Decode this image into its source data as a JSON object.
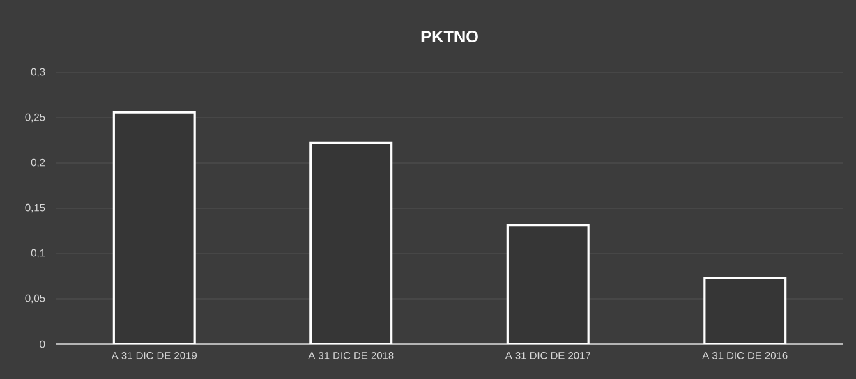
{
  "chart_data": {
    "type": "bar",
    "title": "PKTNO",
    "categories": [
      "A 31 DIC DE 2019",
      "A 31 DIC DE 2018",
      "A 31 DIC DE 2017",
      "A 31 DIC DE 2016"
    ],
    "values": [
      0.256,
      0.222,
      0.131,
      0.073
    ],
    "color": "#363636",
    "ylim": [
      0,
      0.3
    ],
    "yticks": [
      0,
      {
        "value": 0.05,
        "label": "0,05"
      },
      {
        "value": 0.1,
        "label": "0,1"
      },
      {
        "value": 0.15,
        "label": "0,15"
      },
      {
        "value": 0.2,
        "label": "0,2"
      },
      {
        "value": 0.25,
        "label": "0,25"
      },
      {
        "value": 0.3,
        "label": "0,3"
      }
    ],
    "grid": "y"
  }
}
